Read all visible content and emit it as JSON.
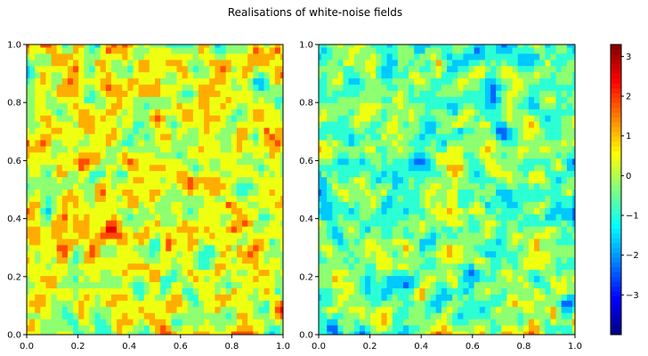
{
  "figure": {
    "title": "Realisations of white-noise fields"
  },
  "colors": {
    "jet": [
      "#00007f",
      "#0000ff",
      "#007fff",
      "#00ffff",
      "#7fff7f",
      "#ffff00",
      "#ff7f00",
      "#ff0000",
      "#7f0000"
    ]
  },
  "chart_data": [
    {
      "type": "heatmap",
      "subtype": "filled-contour",
      "title": "",
      "xlabel": "",
      "ylabel": "",
      "xlim": [
        0,
        1
      ],
      "ylim": [
        0,
        1
      ],
      "xticks": [
        "0.0",
        "0.2",
        "0.4",
        "0.6",
        "0.8",
        "1.0"
      ],
      "yticks": [
        "0.0",
        "0.2",
        "0.4",
        "0.6",
        "0.8",
        "1.0"
      ],
      "grid": false,
      "colormap": "jet",
      "value_range": [
        -4,
        3.3
      ],
      "field_mean": 0.3,
      "seed": 1
    },
    {
      "type": "heatmap",
      "subtype": "filled-contour",
      "title": "",
      "xlabel": "",
      "ylabel": "",
      "xlim": [
        0,
        1
      ],
      "ylim": [
        0,
        1
      ],
      "xticks": [
        "0.0",
        "0.2",
        "0.4",
        "0.6",
        "0.8",
        "1.0"
      ],
      "yticks": [
        "0.0",
        "0.2",
        "0.4",
        "0.6",
        "0.8",
        "1.0"
      ],
      "grid": false,
      "colormap": "jet",
      "value_range": [
        -4,
        3.3
      ],
      "field_mean": -0.5,
      "seed": 2
    }
  ],
  "colorbar": {
    "ticks": [
      "3",
      "2",
      "1",
      "0",
      "−1",
      "−2",
      "−3"
    ],
    "tick_values": [
      3,
      2,
      1,
      0,
      -1,
      -2,
      -3
    ],
    "range": [
      -4,
      3.3
    ]
  }
}
